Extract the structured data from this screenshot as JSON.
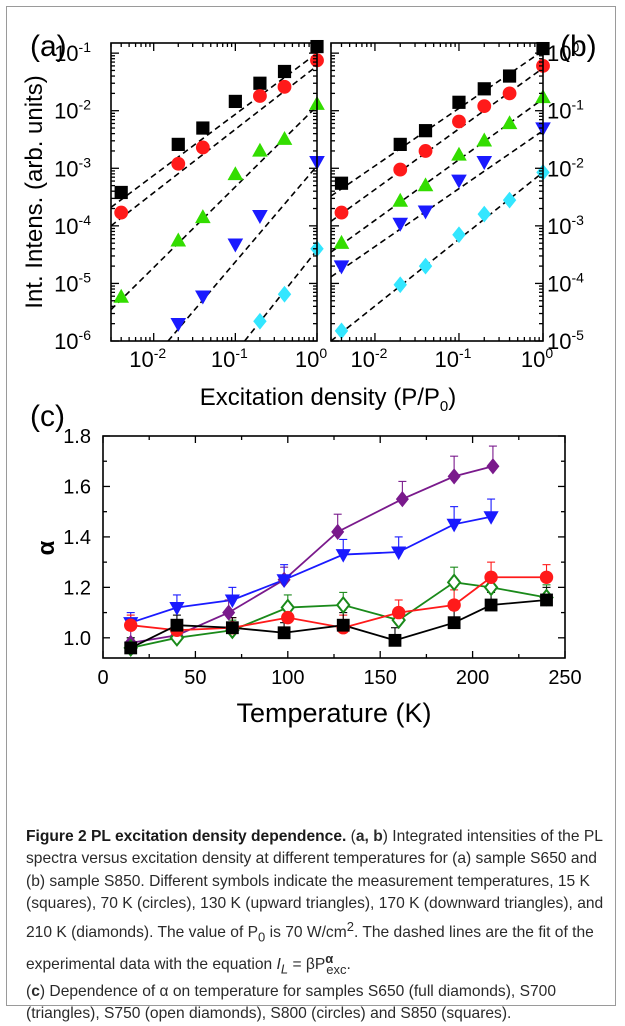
{
  "figure": {
    "panel_labels": [
      "(a)",
      "(b)",
      "(c)"
    ],
    "ylabel_ab": "Int. Intens. (arb. units)",
    "xlabel_ab": "Excitation density (P/P",
    "xlabel_ab_sub": "0",
    "xlabel_ab_end": ")",
    "ylabel_c": "α",
    "xlabel_c": "Temperature (K)",
    "colors": {
      "black": "#000000",
      "red": "#ff1a1a",
      "green": "#33dd00",
      "blue": "#1a1aff",
      "cyan": "#33e6ff",
      "purple": "#7a1a8c",
      "olive": "#8a8a1a",
      "darkgreen": "#1a8a1a",
      "line_c_blue": "#1a1aff"
    }
  },
  "chart_data": [
    {
      "type": "scatter",
      "panel": "(a)",
      "xscale": "log",
      "yscale": "log",
      "xlim": [
        0.003,
        1.0
      ],
      "ylim": [
        1e-06,
        0.15
      ],
      "xticks": [
        {
          "v": 0.01,
          "m": "10",
          "e": "-2"
        },
        {
          "v": 0.1,
          "m": "10",
          "e": "-1"
        },
        {
          "v": 1,
          "m": "10",
          "e": "0"
        }
      ],
      "yticks": [
        {
          "v": 1e-06,
          "m": "10",
          "e": "-6"
        },
        {
          "v": 1e-05,
          "m": "10",
          "e": "-5"
        },
        {
          "v": 0.0001,
          "m": "10",
          "e": "-4"
        },
        {
          "v": 0.001,
          "m": "10",
          "e": "-3"
        },
        {
          "v": 0.01,
          "m": "10",
          "e": "-2"
        },
        {
          "v": 0.1,
          "m": "10",
          "e": "-1"
        }
      ],
      "series": [
        {
          "marker": "square",
          "color": "#000000",
          "x": [
            0.004,
            0.02,
            0.04,
            0.1,
            0.2,
            0.4,
            1.0
          ],
          "y": [
            0.00038,
            0.0026,
            0.005,
            0.0145,
            0.03,
            0.048,
            0.13
          ]
        },
        {
          "marker": "circle",
          "color": "#ff1a1a",
          "x": [
            0.004,
            0.02,
            0.04,
            0.2,
            0.4,
            1.0
          ],
          "y": [
            0.00017,
            0.0012,
            0.0023,
            0.018,
            0.026,
            0.075
          ]
        },
        {
          "marker": "triangle-up",
          "color": "#33dd00",
          "x": [
            0.004,
            0.02,
            0.04,
            0.1,
            0.2,
            0.4,
            1.0
          ],
          "y": [
            5.8e-06,
            5.5e-05,
            0.00014,
            0.00078,
            0.002,
            0.0032,
            0.013
          ]
        },
        {
          "marker": "triangle-down",
          "color": "#1a1aff",
          "x": [
            0.02,
            0.04,
            0.1,
            0.2,
            1.0
          ],
          "y": [
            2e-06,
            6e-06,
            4.8e-05,
            0.00015,
            0.0013
          ]
        },
        {
          "marker": "diamond",
          "color": "#33e6ff",
          "x": [
            0.2,
            0.4,
            1.0
          ],
          "y": [
            2.2e-06,
            6.5e-06,
            4e-05
          ]
        }
      ],
      "fit_lines": [
        {
          "x": [
            0.003,
            1.0
          ],
          "y": [
            0.00021,
            0.1
          ]
        },
        {
          "x": [
            0.003,
            1.0
          ],
          "y": [
            0.0001,
            0.06
          ]
        },
        {
          "x": [
            0.003,
            1.0
          ],
          "y": [
            3.5e-06,
            0.012
          ]
        },
        {
          "x": [
            0.015,
            1.0
          ],
          "y": [
            1e-06,
            0.0011
          ]
        },
        {
          "x": [
            0.13,
            1.0
          ],
          "y": [
            1e-06,
            3.8e-05
          ]
        }
      ]
    },
    {
      "type": "scatter",
      "panel": "(b)",
      "xscale": "log",
      "yscale": "log",
      "xlim": [
        0.003,
        1.0
      ],
      "ylim": [
        1e-05,
        1.5
      ],
      "xticks": [
        {
          "v": 0.01,
          "m": "10",
          "e": "-2"
        },
        {
          "v": 0.1,
          "m": "10",
          "e": "-1"
        },
        {
          "v": 1,
          "m": "10",
          "e": "0"
        }
      ],
      "yticks": [
        {
          "v": 1e-05,
          "m": "10",
          "e": "-5"
        },
        {
          "v": 0.0001,
          "m": "10",
          "e": "-4"
        },
        {
          "v": 0.001,
          "m": "10",
          "e": "-3"
        },
        {
          "v": 0.01,
          "m": "10",
          "e": "-2"
        },
        {
          "v": 0.1,
          "m": "10",
          "e": "-1"
        },
        {
          "v": 1,
          "m": "10",
          "e": "0"
        }
      ],
      "series": [
        {
          "marker": "square",
          "color": "#000000",
          "x": [
            0.004,
            0.02,
            0.04,
            0.1,
            0.2,
            0.4,
            1.0
          ],
          "y": [
            0.0055,
            0.026,
            0.045,
            0.14,
            0.24,
            0.4,
            1.2
          ]
        },
        {
          "marker": "circle",
          "color": "#ff1a1a",
          "x": [
            0.004,
            0.02,
            0.04,
            0.1,
            0.2,
            0.4,
            1.0
          ],
          "y": [
            0.0017,
            0.0095,
            0.02,
            0.065,
            0.12,
            0.2,
            0.6
          ]
        },
        {
          "marker": "triangle-up",
          "color": "#33dd00",
          "x": [
            0.004,
            0.02,
            0.04,
            0.1,
            0.2,
            0.4,
            1.0
          ],
          "y": [
            0.0005,
            0.0027,
            0.005,
            0.017,
            0.03,
            0.06,
            0.17
          ]
        },
        {
          "marker": "triangle-down",
          "color": "#1a1aff",
          "x": [
            0.004,
            0.02,
            0.04,
            0.1,
            0.2,
            1.0
          ],
          "y": [
            0.0002,
            0.0011,
            0.0018,
            0.0062,
            0.013,
            0.05
          ]
        },
        {
          "marker": "diamond",
          "color": "#33e6ff",
          "x": [
            0.004,
            0.02,
            0.04,
            0.1,
            0.2,
            0.4,
            1.0
          ],
          "y": [
            1.5e-05,
            9.5e-05,
            0.0002,
            0.0007,
            0.0016,
            0.0028,
            0.0085
          ]
        }
      ],
      "fit_lines": [
        {
          "x": [
            0.003,
            1.0
          ],
          "y": [
            0.0033,
            1.1
          ]
        },
        {
          "x": [
            0.003,
            1.0
          ],
          "y": [
            0.0012,
            0.55
          ]
        },
        {
          "x": [
            0.003,
            1.0
          ],
          "y": [
            0.00035,
            0.16
          ]
        },
        {
          "x": [
            0.003,
            1.0
          ],
          "y": [
            0.00013,
            0.045
          ]
        },
        {
          "x": [
            0.003,
            1.0
          ],
          "y": [
            1e-05,
            0.0085
          ]
        }
      ]
    },
    {
      "type": "line",
      "panel": "(c)",
      "xlim": [
        0,
        250
      ],
      "ylim": [
        0.92,
        1.8
      ],
      "xticks": [
        0,
        50,
        100,
        150,
        200,
        250
      ],
      "yticks": [
        1.0,
        1.2,
        1.4,
        1.6,
        1.8
      ],
      "series": [
        {
          "marker": "diamond",
          "filled": true,
          "color": "#7a1a8c",
          "x": [
            15,
            40,
            68,
            98,
            127,
            162,
            190,
            211
          ],
          "y": [
            0.98,
            1.01,
            1.1,
            1.23,
            1.42,
            1.55,
            1.64,
            1.68
          ],
          "err": [
            0.05,
            0.04,
            0.05,
            0.05,
            0.07,
            0.07,
            0.08,
            0.08
          ]
        },
        {
          "marker": "triangle-down",
          "filled": true,
          "color": "#1a1aff",
          "x": [
            15,
            40,
            70,
            98,
            130,
            160,
            190,
            210
          ],
          "y": [
            1.06,
            1.12,
            1.15,
            1.23,
            1.33,
            1.34,
            1.45,
            1.48
          ],
          "err": [
            0.04,
            0.05,
            0.05,
            0.06,
            0.06,
            0.06,
            0.07,
            0.07
          ]
        },
        {
          "marker": "diamond",
          "filled": false,
          "color": "#1a8a1a",
          "x": [
            15,
            40,
            70,
            100,
            130,
            160,
            190,
            210,
            240
          ],
          "y": [
            0.96,
            1.0,
            1.03,
            1.12,
            1.13,
            1.07,
            1.22,
            1.2,
            1.16
          ],
          "err": [
            0.04,
            0.04,
            0.04,
            0.05,
            0.05,
            0.05,
            0.06,
            0.06,
            0.05
          ]
        },
        {
          "marker": "circle",
          "filled": true,
          "color": "#ff1a1a",
          "x": [
            15,
            40,
            70,
            100,
            130,
            160,
            190,
            210,
            240
          ],
          "y": [
            1.05,
            1.03,
            1.04,
            1.08,
            1.04,
            1.1,
            1.13,
            1.24,
            1.24
          ],
          "err": [
            0.04,
            0.04,
            0.04,
            0.04,
            0.05,
            0.05,
            0.06,
            0.06,
            0.05
          ]
        },
        {
          "marker": "square",
          "filled": true,
          "color": "#000000",
          "x": [
            15,
            40,
            70,
            98,
            130,
            158,
            190,
            210,
            240
          ],
          "y": [
            0.96,
            1.05,
            1.04,
            1.02,
            1.05,
            0.99,
            1.06,
            1.13,
            1.15
          ],
          "err": [
            0.04,
            0.04,
            0.04,
            0.04,
            0.05,
            0.05,
            0.05,
            0.05,
            0.05
          ]
        }
      ]
    }
  ],
  "caption": {
    "title": "Figure 2 PL excitation density dependence.",
    "p1_open": " (",
    "p1_ab": "a, b",
    "p1_close": ")",
    "p1_text": " Integrated intensities of the PL spectra versus excitation density at different temperatures for (a) sample S650 and (b) sample S850. Different symbols indicate the measurement temperatures, 15 K (squares), 70 K (circles), 130 K (upward triangles), 170 K (downward triangles), and 210 K (diamonds). The value of P",
    "p1_sub0": "0",
    "p1_text2": " is 70 W/cm",
    "p1_sup2": "2",
    "p1_text3": ". The dashed lines are the fit of the experimental data with the equation ",
    "eq_I": "I",
    "eq_L": "L",
    "eq_eq": " = βP",
    "eq_sup": "α",
    "eq_sub": "exc",
    "eq_end": ".",
    "p2_open": "(",
    "p2_c": "c",
    "p2_close": ")",
    "p2_text": " Dependence of α on temperature for samples S650 (full diamonds), S700 (triangles), S750 (open diamonds), S800 (circles) and S850 (squares)."
  }
}
